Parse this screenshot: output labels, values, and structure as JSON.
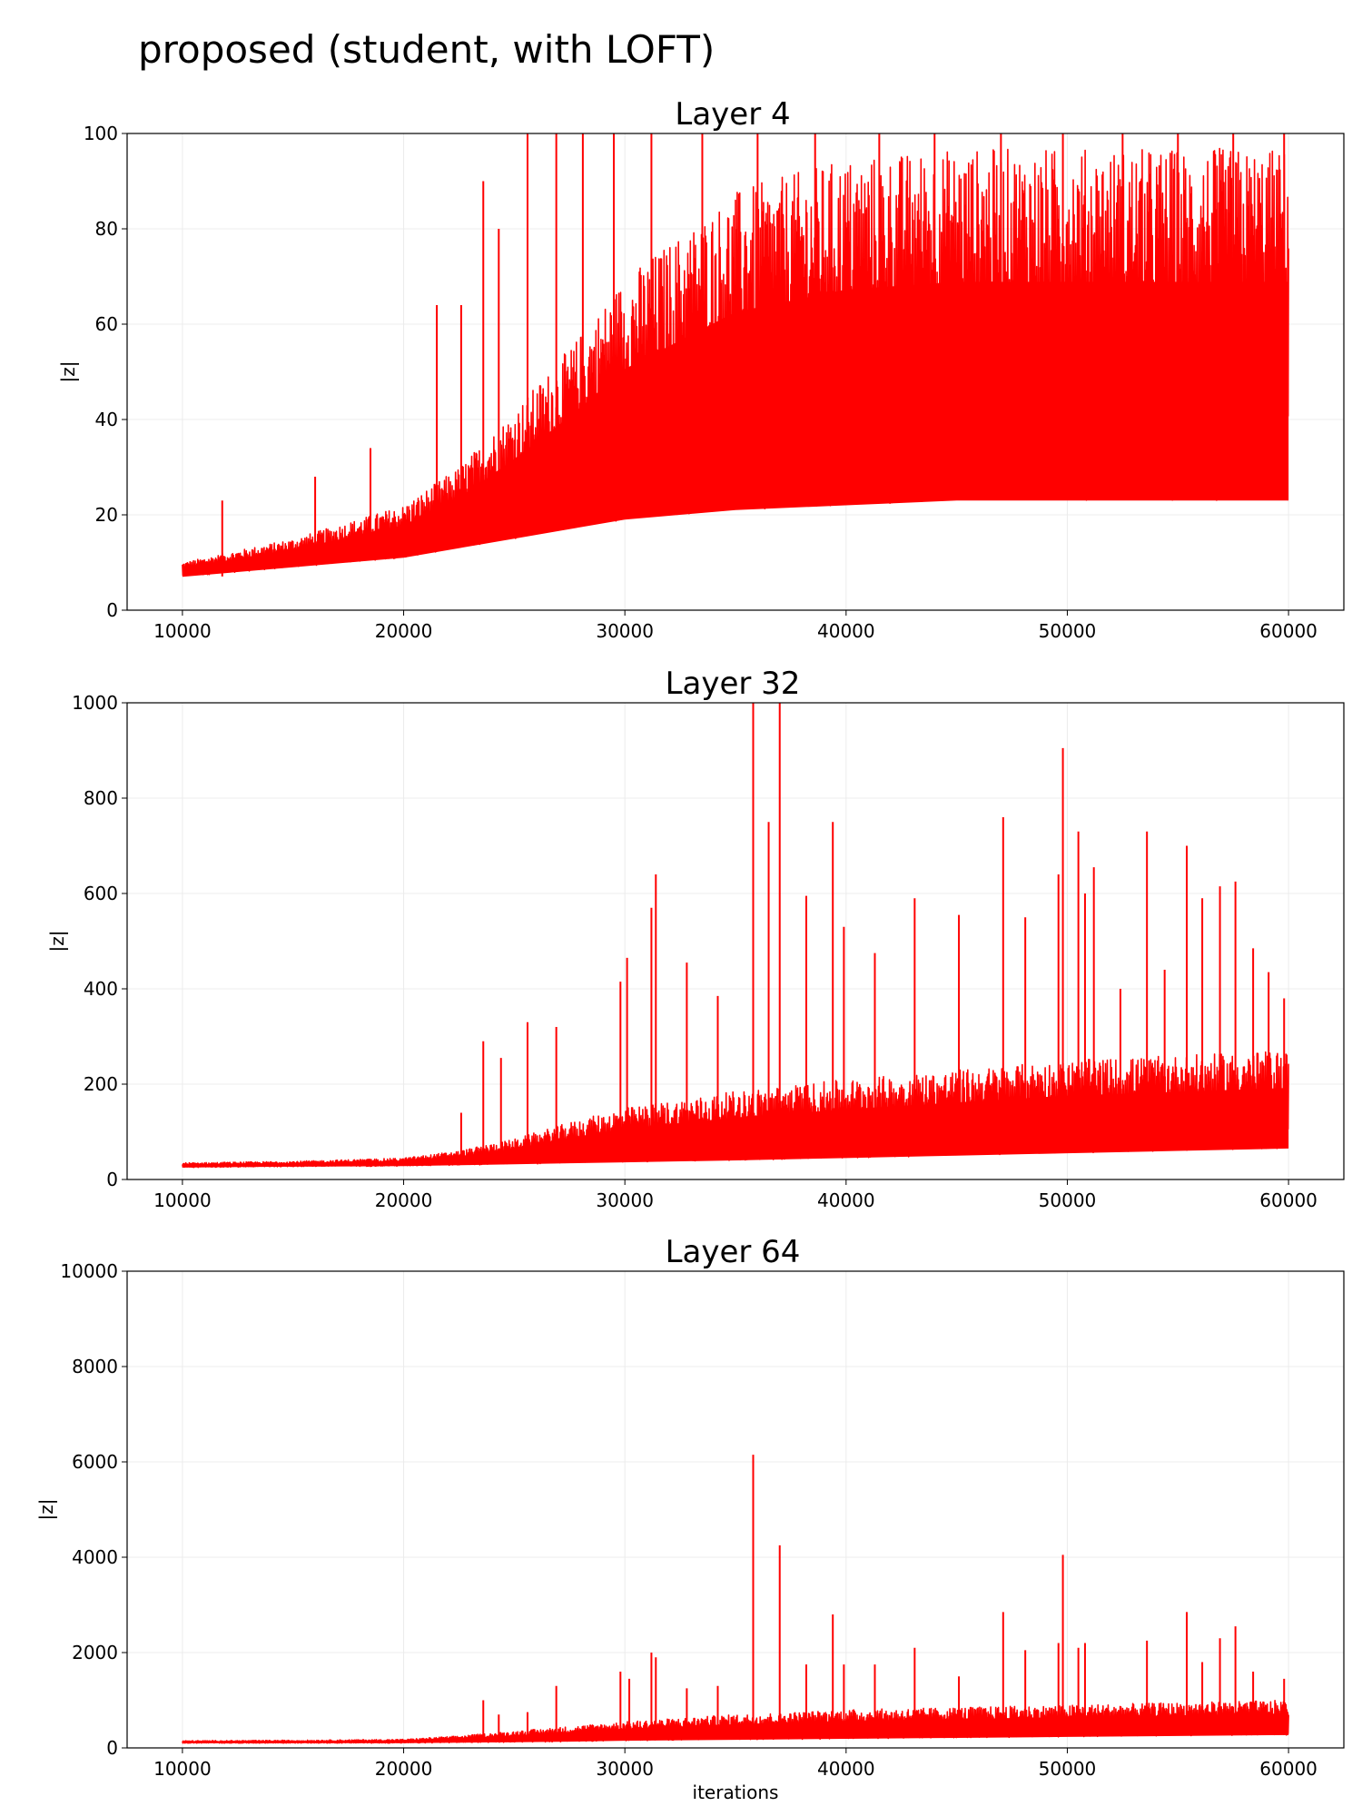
{
  "figure": {
    "suptitle": "proposed (student, with LOFT)",
    "line_color": "#ff0000"
  },
  "chart_data": [
    {
      "type": "line",
      "title": "Layer 4",
      "xlabel": "",
      "ylabel": "|z|",
      "xlim": [
        7500,
        62500
      ],
      "ylim": [
        0,
        100
      ],
      "xticks": [
        10000,
        20000,
        30000,
        40000,
        50000,
        60000
      ],
      "yticks": [
        0,
        20,
        40,
        60,
        80,
        100
      ],
      "grid": true,
      "series": [
        {
          "envelope": {
            "x": [
              10000,
              15000,
              20000,
              22500,
              25000,
              27500,
              30000,
              35000,
              40000,
              45000,
              50000,
              55000,
              60000
            ],
            "lower": [
              7,
              9,
              11,
              13,
              15,
              17,
              19,
              21,
              22,
              23,
              23,
              23,
              23
            ],
            "upper": [
              10,
              15,
              22,
              30,
              42,
              55,
              70,
              88,
              95,
              97,
              97,
              97,
              97
            ]
          },
          "spikes": [
            {
              "x": 11800,
              "y": 23
            },
            {
              "x": 16000,
              "y": 28
            },
            {
              "x": 18500,
              "y": 34
            },
            {
              "x": 21500,
              "y": 64
            },
            {
              "x": 22600,
              "y": 64
            },
            {
              "x": 23600,
              "y": 90
            },
            {
              "x": 24300,
              "y": 80
            },
            {
              "x": 25600,
              "y": 100
            },
            {
              "x": 26900,
              "y": 100
            },
            {
              "x": 28100,
              "y": 100
            },
            {
              "x": 29500,
              "y": 100
            },
            {
              "x": 31200,
              "y": 100
            },
            {
              "x": 33500,
              "y": 100
            },
            {
              "x": 36000,
              "y": 100
            },
            {
              "x": 38600,
              "y": 100
            },
            {
              "x": 41500,
              "y": 100
            },
            {
              "x": 44000,
              "y": 100
            },
            {
              "x": 47000,
              "y": 100
            },
            {
              "x": 49800,
              "y": 100
            },
            {
              "x": 52500,
              "y": 100
            },
            {
              "x": 55000,
              "y": 100
            },
            {
              "x": 57500,
              "y": 100
            },
            {
              "x": 59800,
              "y": 100
            }
          ]
        }
      ]
    },
    {
      "type": "line",
      "title": "Layer 32",
      "xlabel": "",
      "ylabel": "|z|",
      "xlim": [
        7500,
        62500
      ],
      "ylim": [
        0,
        1000
      ],
      "xticks": [
        10000,
        20000,
        30000,
        40000,
        50000,
        60000
      ],
      "yticks": [
        0,
        200,
        400,
        600,
        800,
        1000
      ],
      "grid": true,
      "series": [
        {
          "envelope": {
            "x": [
              10000,
              15000,
              20000,
              22500,
              25000,
              27500,
              30000,
              35000,
              40000,
              45000,
              50000,
              55000,
              60000
            ],
            "lower": [
              25,
              27,
              28,
              30,
              32,
              34,
              36,
              40,
              45,
              50,
              55,
              60,
              65
            ],
            "upper": [
              35,
              38,
              45,
              60,
              85,
              120,
              150,
              185,
              210,
              230,
              250,
              260,
              270
            ]
          },
          "spikes": [
            {
              "x": 22600,
              "y": 140
            },
            {
              "x": 23600,
              "y": 290
            },
            {
              "x": 24400,
              "y": 255
            },
            {
              "x": 25600,
              "y": 330
            },
            {
              "x": 26900,
              "y": 320
            },
            {
              "x": 29800,
              "y": 415
            },
            {
              "x": 30100,
              "y": 465
            },
            {
              "x": 31200,
              "y": 570
            },
            {
              "x": 31400,
              "y": 640
            },
            {
              "x": 32800,
              "y": 455
            },
            {
              "x": 34200,
              "y": 385
            },
            {
              "x": 35800,
              "y": 1000
            },
            {
              "x": 36500,
              "y": 750
            },
            {
              "x": 37000,
              "y": 1000
            },
            {
              "x": 38200,
              "y": 595
            },
            {
              "x": 39400,
              "y": 750
            },
            {
              "x": 39900,
              "y": 530
            },
            {
              "x": 41300,
              "y": 475
            },
            {
              "x": 43100,
              "y": 590
            },
            {
              "x": 45100,
              "y": 555
            },
            {
              "x": 47100,
              "y": 760
            },
            {
              "x": 48100,
              "y": 550
            },
            {
              "x": 49600,
              "y": 640
            },
            {
              "x": 49800,
              "y": 905
            },
            {
              "x": 50500,
              "y": 730
            },
            {
              "x": 50800,
              "y": 600
            },
            {
              "x": 51200,
              "y": 655
            },
            {
              "x": 52400,
              "y": 400
            },
            {
              "x": 53600,
              "y": 730
            },
            {
              "x": 54400,
              "y": 440
            },
            {
              "x": 55400,
              "y": 700
            },
            {
              "x": 56100,
              "y": 590
            },
            {
              "x": 56900,
              "y": 615
            },
            {
              "x": 57600,
              "y": 625
            },
            {
              "x": 58400,
              "y": 485
            },
            {
              "x": 59100,
              "y": 435
            },
            {
              "x": 59800,
              "y": 380
            }
          ]
        }
      ]
    },
    {
      "type": "line",
      "title": "Layer 64",
      "xlabel": "iterations",
      "ylabel": "|z|",
      "xlim": [
        7500,
        62500
      ],
      "ylim": [
        0,
        10000
      ],
      "xticks": [
        10000,
        20000,
        30000,
        40000,
        50000,
        60000
      ],
      "yticks": [
        0,
        2000,
        4000,
        6000,
        8000,
        10000
      ],
      "grid": true,
      "series": [
        {
          "envelope": {
            "x": [
              10000,
              15000,
              20000,
              22500,
              25000,
              27500,
              30000,
              35000,
              40000,
              45000,
              50000,
              55000,
              60000
            ],
            "lower": [
              100,
              100,
              100,
              110,
              120,
              130,
              150,
              170,
              190,
              210,
              230,
              250,
              270
            ],
            "upper": [
              150,
              160,
              180,
              250,
              350,
              450,
              550,
              700,
              800,
              850,
              900,
              950,
              1000
            ]
          },
          "spikes": [
            {
              "x": 23600,
              "y": 1000
            },
            {
              "x": 24300,
              "y": 700
            },
            {
              "x": 25600,
              "y": 750
            },
            {
              "x": 26900,
              "y": 1300
            },
            {
              "x": 29800,
              "y": 1600
            },
            {
              "x": 30200,
              "y": 1450
            },
            {
              "x": 31200,
              "y": 2000
            },
            {
              "x": 31400,
              "y": 1900
            },
            {
              "x": 32800,
              "y": 1250
            },
            {
              "x": 34200,
              "y": 1300
            },
            {
              "x": 35800,
              "y": 6150
            },
            {
              "x": 37000,
              "y": 4250
            },
            {
              "x": 38200,
              "y": 1750
            },
            {
              "x": 39400,
              "y": 2800
            },
            {
              "x": 39900,
              "y": 1750
            },
            {
              "x": 41300,
              "y": 1750
            },
            {
              "x": 43100,
              "y": 2100
            },
            {
              "x": 45100,
              "y": 1500
            },
            {
              "x": 47100,
              "y": 2850
            },
            {
              "x": 48100,
              "y": 2050
            },
            {
              "x": 49600,
              "y": 2200
            },
            {
              "x": 49800,
              "y": 4050
            },
            {
              "x": 50500,
              "y": 2100
            },
            {
              "x": 50800,
              "y": 2200
            },
            {
              "x": 53600,
              "y": 2250
            },
            {
              "x": 55400,
              "y": 2850
            },
            {
              "x": 56100,
              "y": 1800
            },
            {
              "x": 56900,
              "y": 2300
            },
            {
              "x": 57600,
              "y": 2550
            },
            {
              "x": 58400,
              "y": 1600
            },
            {
              "x": 59800,
              "y": 1450
            }
          ]
        }
      ]
    }
  ]
}
